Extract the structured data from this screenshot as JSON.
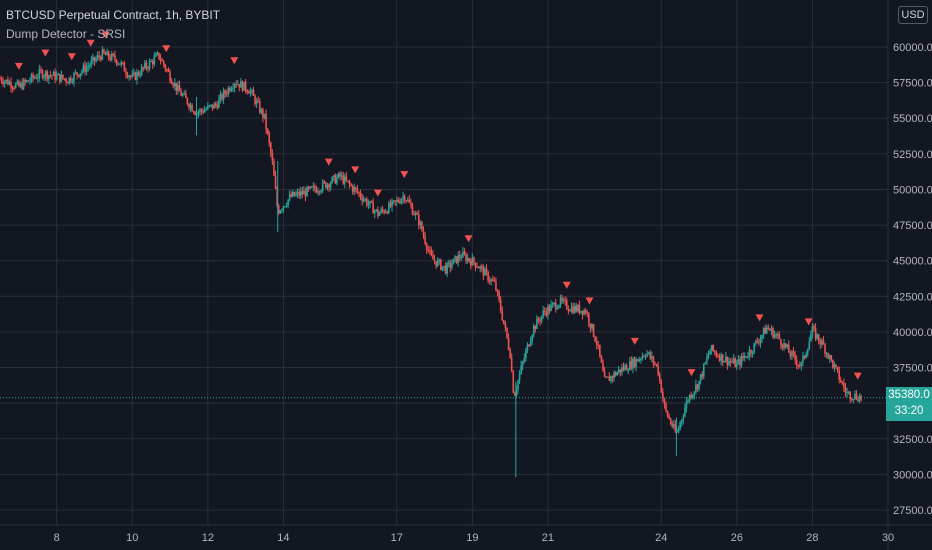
{
  "header": {
    "title": "BTCUSD Perpetual Contract, 1h, BYBIT",
    "indicator": "Dump Detector - SRSI",
    "currency": "USD"
  },
  "last_price": {
    "value": "35380.0",
    "countdown": "33:20"
  },
  "colors": {
    "background": "#131722",
    "grid": "#2a2e39",
    "up": "#26a69a",
    "down": "#ef5350",
    "marker": "#ef5350",
    "axis_text": "#b2b5be"
  },
  "chart_data": {
    "type": "candlestick",
    "title": "BTCUSD Perpetual Contract, 1h, BYBIT",
    "indicator": "Dump Detector - SRSI",
    "x_ticks": [
      {
        "day": 8,
        "label": "8"
      },
      {
        "day": 10,
        "label": "10"
      },
      {
        "day": 12,
        "label": "12"
      },
      {
        "day": 14,
        "label": "14"
      },
      {
        "day": 17,
        "label": "17"
      },
      {
        "day": 19,
        "label": "19"
      },
      {
        "day": 21,
        "label": "21"
      },
      {
        "day": 24,
        "label": "24"
      },
      {
        "day": 26,
        "label": "26"
      },
      {
        "day": 28,
        "label": "28"
      },
      {
        "day": 30,
        "label": "30"
      }
    ],
    "y_ticks": [
      "27500.0",
      "30000.0",
      "32500.0",
      "35000.0",
      "37500.0",
      "40000.0",
      "42500.0",
      "45000.0",
      "47500.0",
      "50000.0",
      "52500.0",
      "55000.0",
      "57500.0",
      "60000.0"
    ],
    "ylim": [
      27500,
      62500
    ],
    "xlim": [
      6.5,
      30.0
    ],
    "grid": true,
    "price_series": {
      "name": "BTCUSD",
      "points": [
        [
          6.5,
          57800
        ],
        [
          7.0,
          57200
        ],
        [
          7.6,
          58200
        ],
        [
          8.3,
          57700
        ],
        [
          8.8,
          58600
        ],
        [
          9.2,
          59500
        ],
        [
          9.6,
          59100
        ],
        [
          10.0,
          57800
        ],
        [
          10.7,
          59400
        ],
        [
          11.2,
          57000
        ],
        [
          11.7,
          55400
        ],
        [
          12.2,
          55900
        ],
        [
          12.7,
          57600
        ],
        [
          13.1,
          57000
        ],
        [
          13.5,
          55000
        ],
        [
          13.7,
          52000
        ],
        [
          13.85,
          48500
        ],
        [
          14.2,
          49500
        ],
        [
          14.6,
          49800
        ],
        [
          15.0,
          50200
        ],
        [
          15.5,
          50900
        ],
        [
          16.0,
          49700
        ],
        [
          16.5,
          48300
        ],
        [
          16.9,
          48900
        ],
        [
          17.2,
          49600
        ],
        [
          17.6,
          47700
        ],
        [
          17.9,
          45200
        ],
        [
          18.3,
          44400
        ],
        [
          18.7,
          45400
        ],
        [
          19.1,
          44800
        ],
        [
          19.6,
          43300
        ],
        [
          19.8,
          41000
        ],
        [
          20.0,
          38500
        ],
        [
          20.1,
          35500
        ],
        [
          20.3,
          37500
        ],
        [
          20.6,
          40200
        ],
        [
          20.9,
          41400
        ],
        [
          21.3,
          42100
        ],
        [
          21.6,
          41700
        ],
        [
          22.0,
          41500
        ],
        [
          22.3,
          39200
        ],
        [
          22.5,
          36500
        ],
        [
          22.9,
          37300
        ],
        [
          23.3,
          37900
        ],
        [
          23.6,
          38600
        ],
        [
          23.9,
          37500
        ],
        [
          24.1,
          34500
        ],
        [
          24.4,
          32800
        ],
        [
          24.7,
          35300
        ],
        [
          25.0,
          36500
        ],
        [
          25.3,
          38800
        ],
        [
          25.6,
          38200
        ],
        [
          26.0,
          37700
        ],
        [
          26.4,
          38800
        ],
        [
          26.8,
          40300
        ],
        [
          27.1,
          39600
        ],
        [
          27.4,
          38500
        ],
        [
          27.7,
          37600
        ],
        [
          28.0,
          40100
        ],
        [
          28.3,
          39000
        ],
        [
          28.6,
          37400
        ],
        [
          28.9,
          35700
        ],
        [
          29.3,
          35380
        ]
      ]
    },
    "dump_signals": [
      7.0,
      7.7,
      8.4,
      8.9,
      9.3,
      10.9,
      12.7,
      15.2,
      15.9,
      16.5,
      17.2,
      18.9,
      21.5,
      22.1,
      23.3,
      24.8,
      26.6,
      27.9,
      29.2
    ],
    "last_price": 35380.0
  }
}
